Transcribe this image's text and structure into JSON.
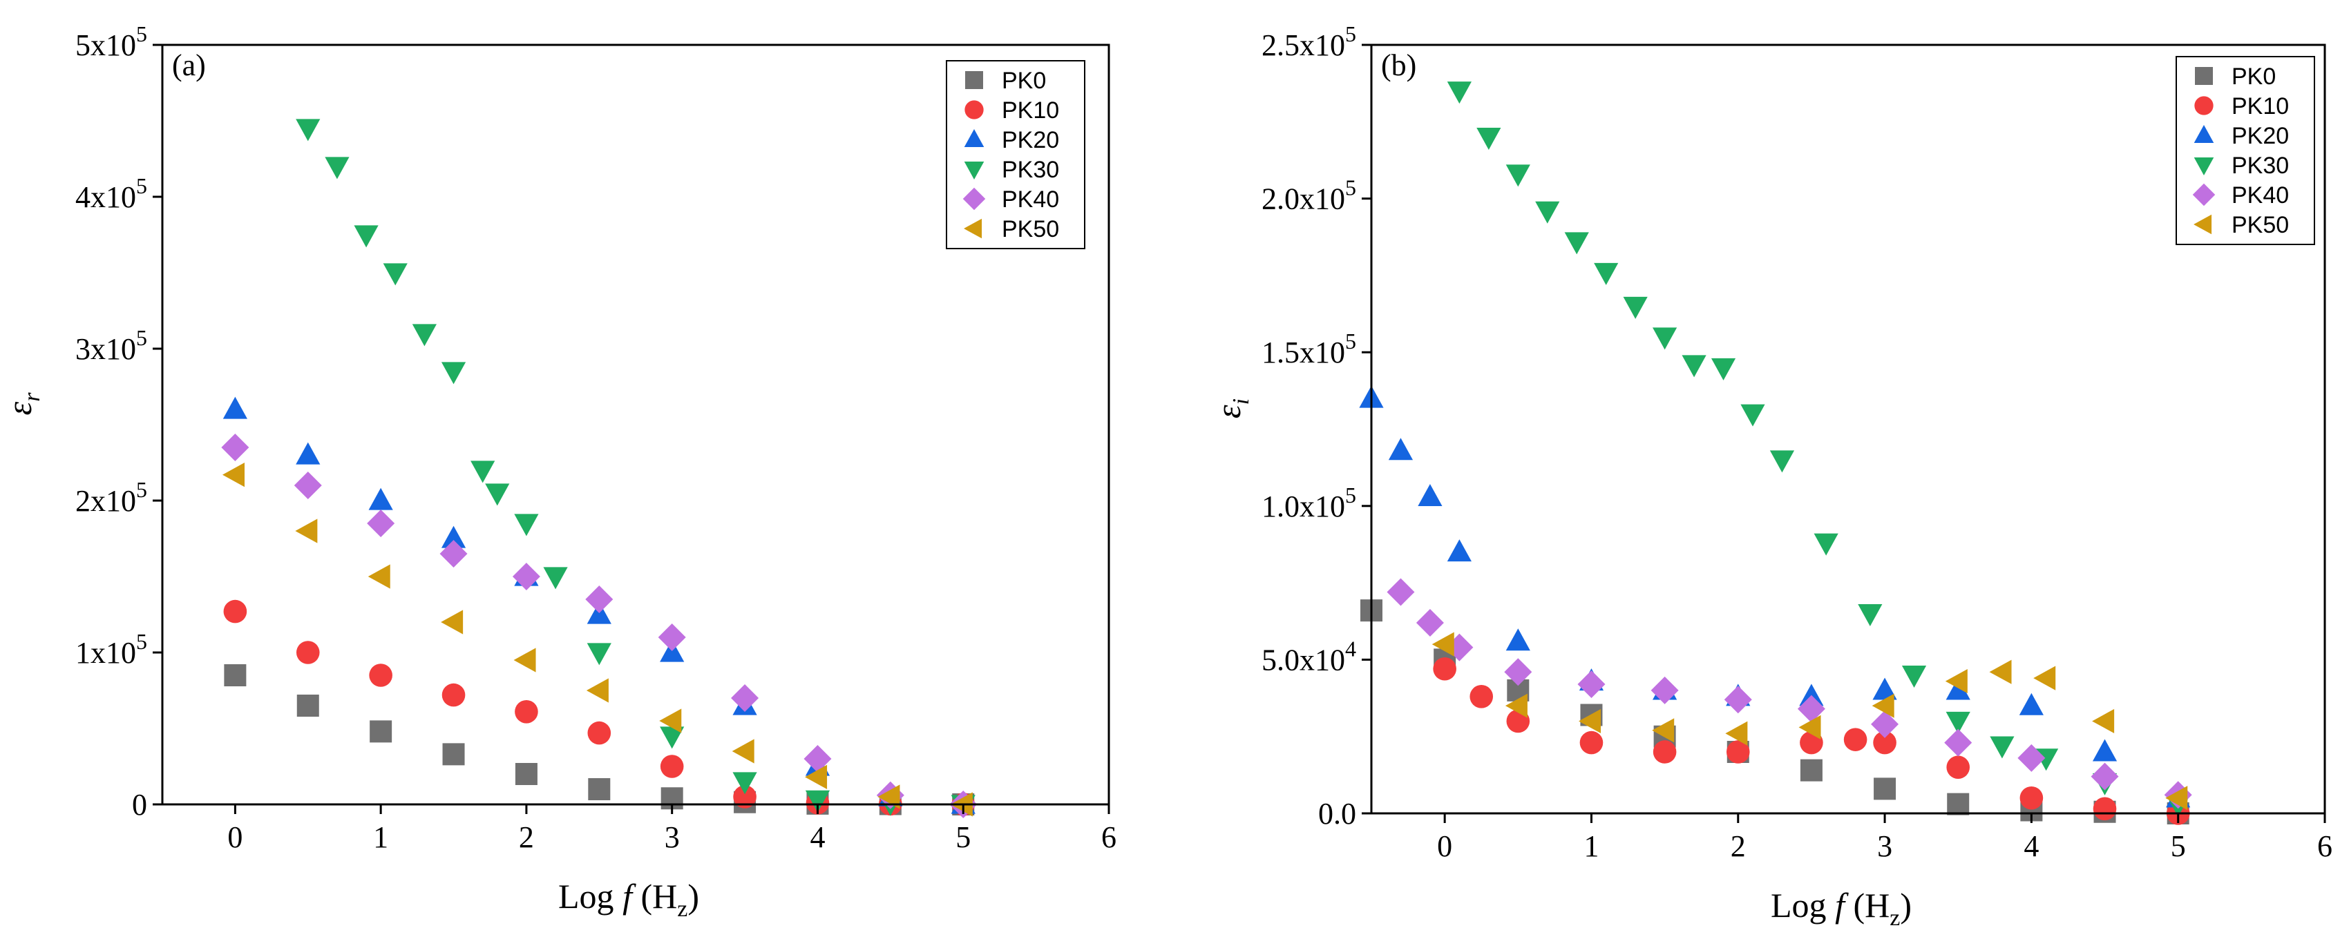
{
  "chart_data": [
    {
      "type": "scatter",
      "panel_label": "(a)",
      "xlabel": {
        "prefix": "Log ",
        "var": "f",
        "open": " (H",
        "sub": "z",
        "close": ")"
      },
      "ylabel": {
        "symbol": "ε",
        "sub": "r"
      },
      "xlim": [
        -0.5,
        6
      ],
      "ylim": [
        0,
        500000
      ],
      "x_ticks": [
        0,
        1,
        2,
        3,
        4,
        5,
        6
      ],
      "y_ticks": [
        {
          "value": 0,
          "mant": "0",
          "exp": ""
        },
        {
          "value": 100000,
          "mant": "1x10",
          "exp": "5"
        },
        {
          "value": 200000,
          "mant": "2x10",
          "exp": "5"
        },
        {
          "value": 300000,
          "mant": "3x10",
          "exp": "5"
        },
        {
          "value": 400000,
          "mant": "4x10",
          "exp": "5"
        },
        {
          "value": 500000,
          "mant": "5x10",
          "exp": "5"
        }
      ],
      "legend_position": "top-right",
      "series": [
        {
          "name": "PK0",
          "marker": "square",
          "color": "#707070",
          "x": [
            0,
            0.5,
            1,
            1.5,
            2,
            2.5,
            3,
            3.5,
            4,
            4.5,
            5
          ],
          "y": [
            85000,
            65000,
            48000,
            33000,
            20000,
            10000,
            4000,
            1500,
            500,
            200,
            0
          ]
        },
        {
          "name": "PK10",
          "marker": "circle",
          "color": "#f23c3c",
          "x": [
            0,
            0.5,
            1,
            1.5,
            2,
            2.5,
            3,
            3.5,
            4,
            4.5,
            5
          ],
          "y": [
            127000,
            100000,
            85000,
            72000,
            61000,
            47000,
            25000,
            5000,
            1000,
            300,
            0
          ]
        },
        {
          "name": "PK20",
          "marker": "triangle-up",
          "color": "#1565e0",
          "x": [
            0,
            0.5,
            1,
            1.5,
            2,
            2.5,
            3,
            3.5,
            4,
            4.5,
            5
          ],
          "y": [
            260000,
            230000,
            200000,
            175000,
            150000,
            125000,
            100000,
            65000,
            25000,
            5000,
            0
          ]
        },
        {
          "name": "PK30",
          "marker": "triangle-down",
          "color": "#1fad60",
          "x": [
            0.5,
            0.7,
            0.9,
            1.1,
            1.3,
            1.5,
            1.7,
            1.8,
            2.0,
            2.2,
            2.5,
            3.0,
            3.5,
            4.0,
            4.5,
            5
          ],
          "y": [
            445000,
            420000,
            375000,
            350000,
            310000,
            285000,
            220000,
            205000,
            185000,
            150000,
            100000,
            45000,
            15000,
            3000,
            800,
            0
          ]
        },
        {
          "name": "PK40",
          "marker": "diamond",
          "color": "#c070e0",
          "x": [
            0,
            0.5,
            1,
            1.5,
            2,
            2.5,
            3,
            3.5,
            4,
            4.5,
            5
          ],
          "y": [
            235000,
            210000,
            185000,
            165000,
            150000,
            135000,
            110000,
            70000,
            30000,
            6000,
            0
          ]
        },
        {
          "name": "PK50",
          "marker": "triangle-left",
          "color": "#d19a0e",
          "x": [
            0,
            0.5,
            1,
            1.5,
            2,
            2.5,
            3,
            3.5,
            4,
            4.5,
            5
          ],
          "y": [
            217000,
            180000,
            150000,
            120000,
            95000,
            75000,
            55000,
            35000,
            18000,
            5000,
            0
          ]
        }
      ]
    },
    {
      "type": "scatter",
      "panel_label": "(b)",
      "xlabel": {
        "prefix": "Log ",
        "var": "f",
        "open": " (H",
        "sub": "z",
        "close": ")"
      },
      "ylabel": {
        "symbol": "ε",
        "sub": "i"
      },
      "xlim": [
        -0.5,
        6
      ],
      "ylim": [
        0,
        250000
      ],
      "x_ticks": [
        0,
        1,
        2,
        3,
        4,
        5,
        6
      ],
      "y_ticks": [
        {
          "value": 0,
          "mant": "0.0",
          "exp": ""
        },
        {
          "value": 50000,
          "mant": "5.0x10",
          "exp": "4"
        },
        {
          "value": 100000,
          "mant": "1.0x10",
          "exp": "5"
        },
        {
          "value": 150000,
          "mant": "1.5x10",
          "exp": "5"
        },
        {
          "value": 200000,
          "mant": "2.0x10",
          "exp": "5"
        },
        {
          "value": 250000,
          "mant": "2.5x10",
          "exp": "5"
        }
      ],
      "legend_position": "top-right",
      "series": [
        {
          "name": "PK0",
          "marker": "square",
          "color": "#707070",
          "x": [
            -0.5,
            0,
            0.5,
            1,
            1.5,
            2,
            2.5,
            3,
            3.5,
            4,
            4.5,
            5
          ],
          "y": [
            66000,
            50000,
            40000,
            32000,
            25000,
            20000,
            14000,
            8000,
            3000,
            1000,
            500,
            0
          ]
        },
        {
          "name": "PK10",
          "marker": "circle",
          "color": "#f23c3c",
          "x": [
            0,
            0.25,
            0.5,
            1,
            1.5,
            2,
            2.5,
            2.8,
            3,
            3.5,
            4,
            4.5,
            5
          ],
          "y": [
            47000,
            38000,
            30000,
            23000,
            20000,
            20000,
            23000,
            24000,
            23000,
            15000,
            5000,
            1500,
            0
          ]
        },
        {
          "name": "PK20",
          "marker": "triangle-up",
          "color": "#1565e0",
          "x": [
            -0.5,
            -0.3,
            -0.1,
            0.1,
            0.5,
            1,
            1.5,
            2,
            2.5,
            3,
            3.5,
            4,
            4.5,
            5
          ],
          "y": [
            135000,
            118000,
            103000,
            85000,
            56000,
            43000,
            40000,
            38000,
            38000,
            40000,
            40000,
            35000,
            20000,
            5000
          ]
        },
        {
          "name": "PK30",
          "marker": "triangle-down",
          "color": "#1fad60",
          "x": [
            0.1,
            0.3,
            0.5,
            0.7,
            0.9,
            1.1,
            1.3,
            1.5,
            1.7,
            1.9,
            2.1,
            2.3,
            2.6,
            2.9,
            3.2,
            3.5,
            3.8,
            4.1,
            4.5,
            5
          ],
          "y": [
            235000,
            220000,
            208000,
            196000,
            186000,
            176000,
            165000,
            155000,
            146000,
            145000,
            130000,
            115000,
            88000,
            65000,
            45000,
            30000,
            22000,
            18000,
            10000,
            3000
          ]
        },
        {
          "name": "PK40",
          "marker": "diamond",
          "color": "#c070e0",
          "x": [
            -0.3,
            -0.1,
            0.1,
            0.5,
            1,
            1.5,
            2,
            2.5,
            3,
            3.5,
            4,
            4.5,
            5
          ],
          "y": [
            72000,
            62000,
            54000,
            46000,
            42000,
            40000,
            37000,
            34000,
            29000,
            23000,
            18000,
            12000,
            6000
          ]
        },
        {
          "name": "PK50",
          "marker": "triangle-left",
          "color": "#d19a0e",
          "x": [
            0,
            0.5,
            1,
            1.5,
            2,
            2.5,
            3,
            3.5,
            3.8,
            4.1,
            4.5,
            5
          ],
          "y": [
            55000,
            35000,
            30000,
            27000,
            26000,
            28000,
            35000,
            43000,
            46000,
            44000,
            30000,
            5000
          ]
        }
      ]
    }
  ]
}
